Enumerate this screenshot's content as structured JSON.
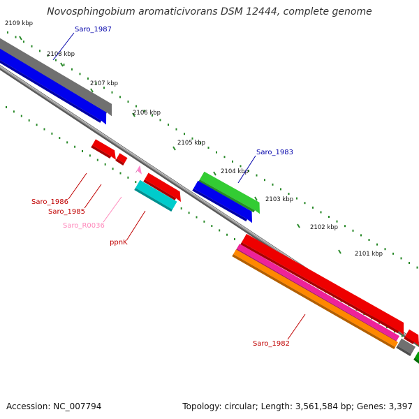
{
  "title": "Novosphingobium aromaticivorans DSM 12444, complete genome",
  "footer": {
    "accession": "Accession: NC_007794",
    "topology": "Topology: circular; Length: 3,561,584 bp; Genes: 3,397"
  },
  "colors": {
    "backbone": "#8c8c8c",
    "tick": "#2a8a2a",
    "gene_label_dark": "#c00000",
    "gene_label_blue": "#0000aa",
    "gene_label_pink": "#ff88bb"
  },
  "scale_labels": [
    "2109 kbp",
    "2108 kbp",
    "2107 kbp",
    "2106 kbp",
    "2105 kbp",
    "2104 kbp",
    "2103 kbp",
    "2102 kbp",
    "2101 kbp"
  ],
  "features": [
    {
      "id": "gray-upper",
      "color": "#707070"
    },
    {
      "id": "Saro_1987",
      "color": "#0000ee"
    },
    {
      "id": "Saro_1986",
      "color": "#ee0000"
    },
    {
      "id": "Saro_1985",
      "color": "#ee0000"
    },
    {
      "id": "Saro_R0036",
      "color": "#ff88cc"
    },
    {
      "id": "ppnK",
      "color": "#ee0000"
    },
    {
      "id": "cyan-gene",
      "color": "#00cccc"
    },
    {
      "id": "Saro_1983",
      "color": "#33cc33"
    },
    {
      "id": "blue-gene-mid",
      "color": "#0000ee"
    },
    {
      "id": "Saro_1982",
      "color": "#ee0000"
    },
    {
      "id": "magenta-gene",
      "color": "#ee2299"
    },
    {
      "id": "orange-gene",
      "color": "#ff8800"
    },
    {
      "id": "gray-lower",
      "color": "#707070"
    },
    {
      "id": "red-gene-edge",
      "color": "#ee0000"
    },
    {
      "id": "green-gene-edge",
      "color": "#009900"
    }
  ],
  "gene_labels": [
    {
      "text": "Saro_1987",
      "color": "#0000aa"
    },
    {
      "text": "Saro_1983",
      "color": "#0000aa"
    },
    {
      "text": "Saro_1986",
      "color": "#c00000"
    },
    {
      "text": "Saro_1985",
      "color": "#c00000"
    },
    {
      "text": "Saro_R0036",
      "color": "#ff88bb"
    },
    {
      "text": "ppnK",
      "color": "#c00000"
    },
    {
      "text": "Saro_1982",
      "color": "#c00000"
    }
  ]
}
